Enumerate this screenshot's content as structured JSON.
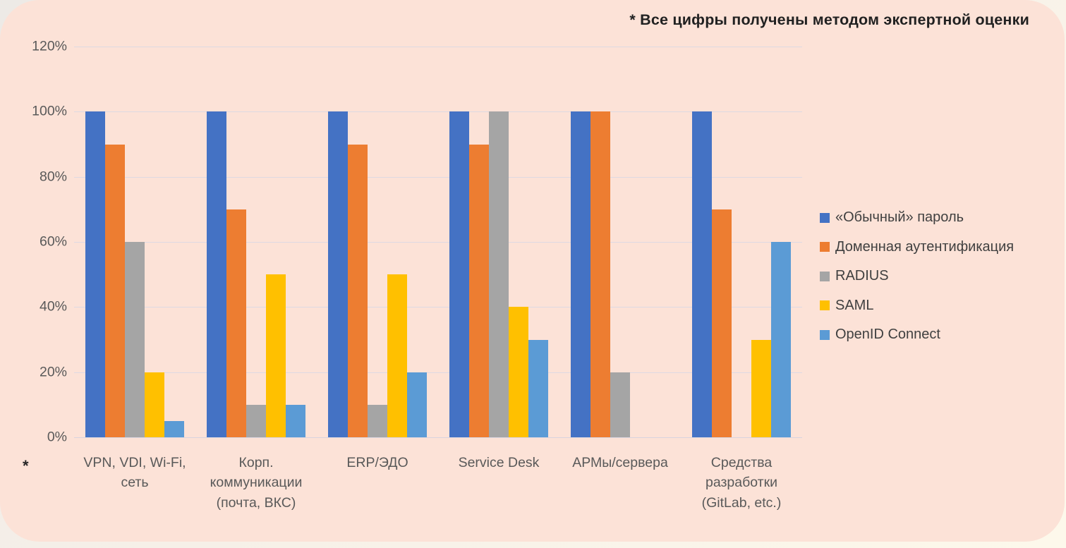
{
  "annotation": "* Все цифры получены методом экспертной оценки",
  "footnote": "*",
  "colors": {
    "panel_background": "#fce2d7",
    "outer_background_start": "#edeae6",
    "outer_background_end": "#fdf8eb",
    "gridline": "#ded9e2",
    "tick_text": "#595959",
    "category_text": "#595959",
    "annotation_text": "#212121",
    "legend_text": "#404040"
  },
  "chart_data": {
    "type": "bar",
    "title": "* Все цифры получены методом экспертной оценки",
    "categories": [
      "VPN, VDI, Wi-Fi,\nсеть",
      "Корп.\nкоммуникации\n(почта, ВКС)",
      "ERP/ЭДО",
      "Service Desk",
      "АРМы/сервера",
      "Средства\nразработки\n(GitLab, etc.)"
    ],
    "series": [
      {
        "name": "«Обычный» пароль",
        "color": "#4472C4",
        "values": [
          100,
          100,
          100,
          100,
          100,
          100
        ]
      },
      {
        "name": "Доменная аутентификация",
        "color": "#ED7D31",
        "values": [
          90,
          70,
          90,
          90,
          100,
          70
        ]
      },
      {
        "name": "RADIUS",
        "color": "#A5A5A5",
        "values": [
          60,
          10,
          10,
          100,
          20,
          0
        ]
      },
      {
        "name": "SAML",
        "color": "#FFC000",
        "values": [
          20,
          50,
          50,
          40,
          0,
          30
        ]
      },
      {
        "name": "OpenID Connect",
        "color": "#5B9BD5",
        "values": [
          5,
          10,
          20,
          30,
          0,
          60
        ]
      }
    ],
    "xlabel": "",
    "ylabel": "",
    "ylim": [
      0,
      120
    ],
    "yticks": [
      0,
      20,
      40,
      60,
      80,
      100,
      120
    ],
    "ytick_suffix": "%",
    "grid": "horizontal",
    "legend_position": "right"
  }
}
